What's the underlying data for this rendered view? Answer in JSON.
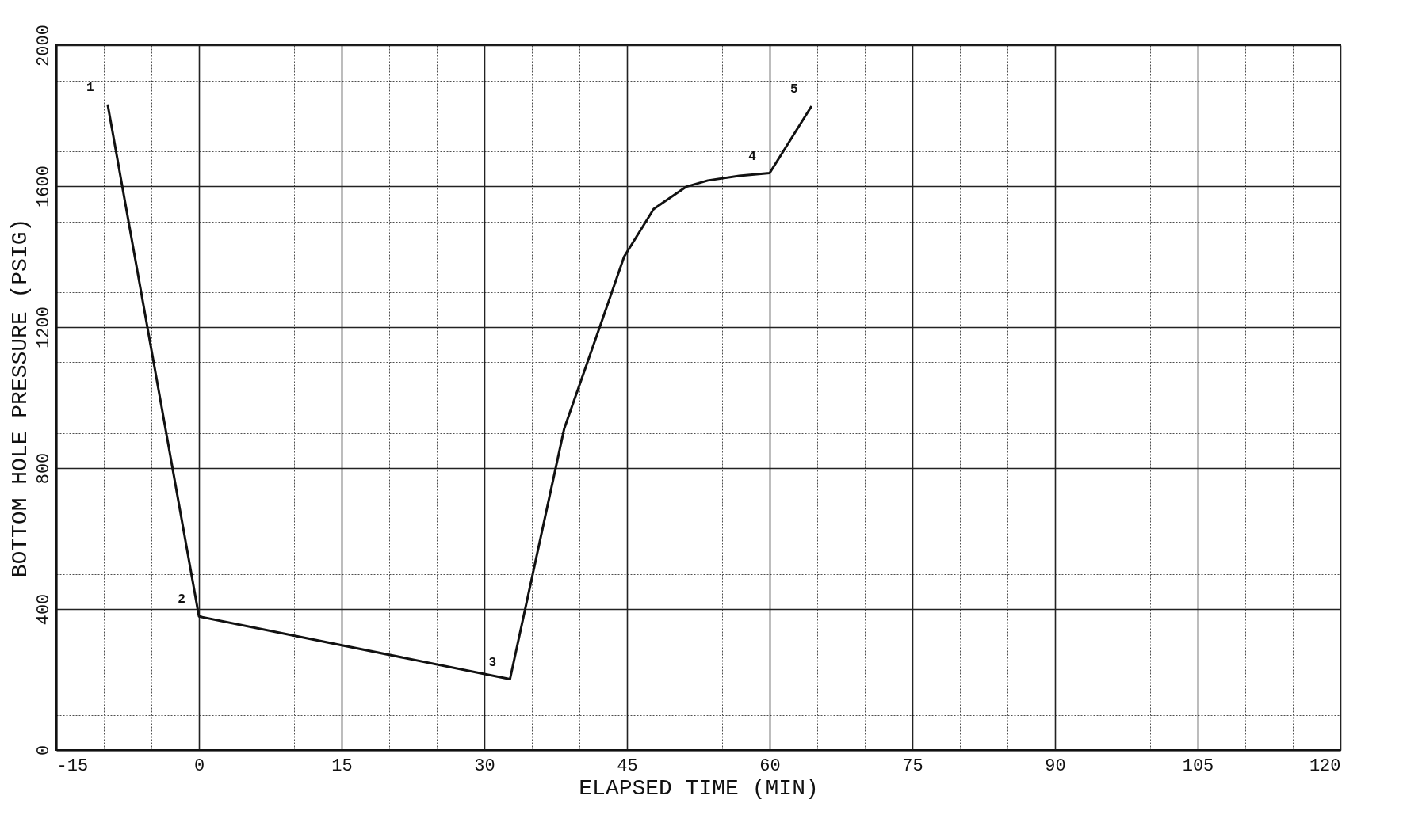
{
  "chart_data": {
    "type": "line",
    "xlabel": "ELAPSED TIME (MIN)",
    "ylabel": "BOTTOM HOLE PRESSURE (PSIG)",
    "x": [
      -9.6,
      0,
      32.7,
      38.4,
      42.2,
      44.7,
      47.8,
      51.2,
      53.5,
      56.8,
      60,
      64.4
    ],
    "series": [
      {
        "color": "#111111",
        "values": [
          1832,
          379,
          201,
          912,
          1205,
          1400,
          1535,
          1598,
          1616,
          1629,
          1637,
          1827
        ]
      }
    ],
    "xlim": [
      -15,
      120
    ],
    "xticks": [
      -15,
      {
        "value": -10,
        "label": null
      },
      {
        "value": -5,
        "label": null
      },
      0,
      {
        "value": 5,
        "label": null
      },
      {
        "value": 10,
        "label": null
      },
      15,
      {
        "value": 20,
        "label": null
      },
      {
        "value": 25,
        "label": null
      },
      30,
      {
        "value": 35,
        "label": null
      },
      {
        "value": 40,
        "label": null
      },
      45,
      {
        "value": 50,
        "label": null
      },
      {
        "value": 55,
        "label": null
      },
      60,
      {
        "value": 65,
        "label": null
      },
      {
        "value": 70,
        "label": null
      },
      75,
      {
        "value": 80,
        "label": null
      },
      {
        "value": 85,
        "label": null
      },
      90,
      {
        "value": 95,
        "label": null
      },
      {
        "value": 100,
        "label": null
      },
      105,
      {
        "value": 110,
        "label": null
      },
      {
        "value": 115,
        "label": null
      },
      120
    ],
    "ylim": [
      0,
      2000
    ],
    "yticks": [
      0,
      {
        "value": 100,
        "label": null
      },
      {
        "value": 200,
        "label": null
      },
      {
        "value": 300,
        "label": null
      },
      400,
      {
        "value": 500,
        "label": null
      },
      {
        "value": 600,
        "label": null
      },
      {
        "value": 700,
        "label": null
      },
      800,
      {
        "value": 900,
        "label": null
      },
      {
        "value": 1000,
        "label": null
      },
      {
        "value": 1100,
        "label": null
      },
      1200,
      {
        "value": 1300,
        "label": null
      },
      {
        "value": 1400,
        "label": null
      },
      {
        "value": 1500,
        "label": null
      },
      1600,
      {
        "value": 1700,
        "label": null
      },
      {
        "value": 1800,
        "label": null
      },
      {
        "value": 1900,
        "label": null
      },
      2000
    ],
    "grid": true,
    "marker": "none",
    "line_style": "solid",
    "annotations": [
      {
        "text": "1",
        "x": -9.6,
        "y": 1832
      },
      {
        "text": "2",
        "x": 0,
        "y": 379
      },
      {
        "text": "3",
        "x": 32.7,
        "y": 201
      },
      {
        "text": "4",
        "x": 60,
        "y": 1637
      },
      {
        "text": "5",
        "x": 64.4,
        "y": 1827
      }
    ]
  }
}
